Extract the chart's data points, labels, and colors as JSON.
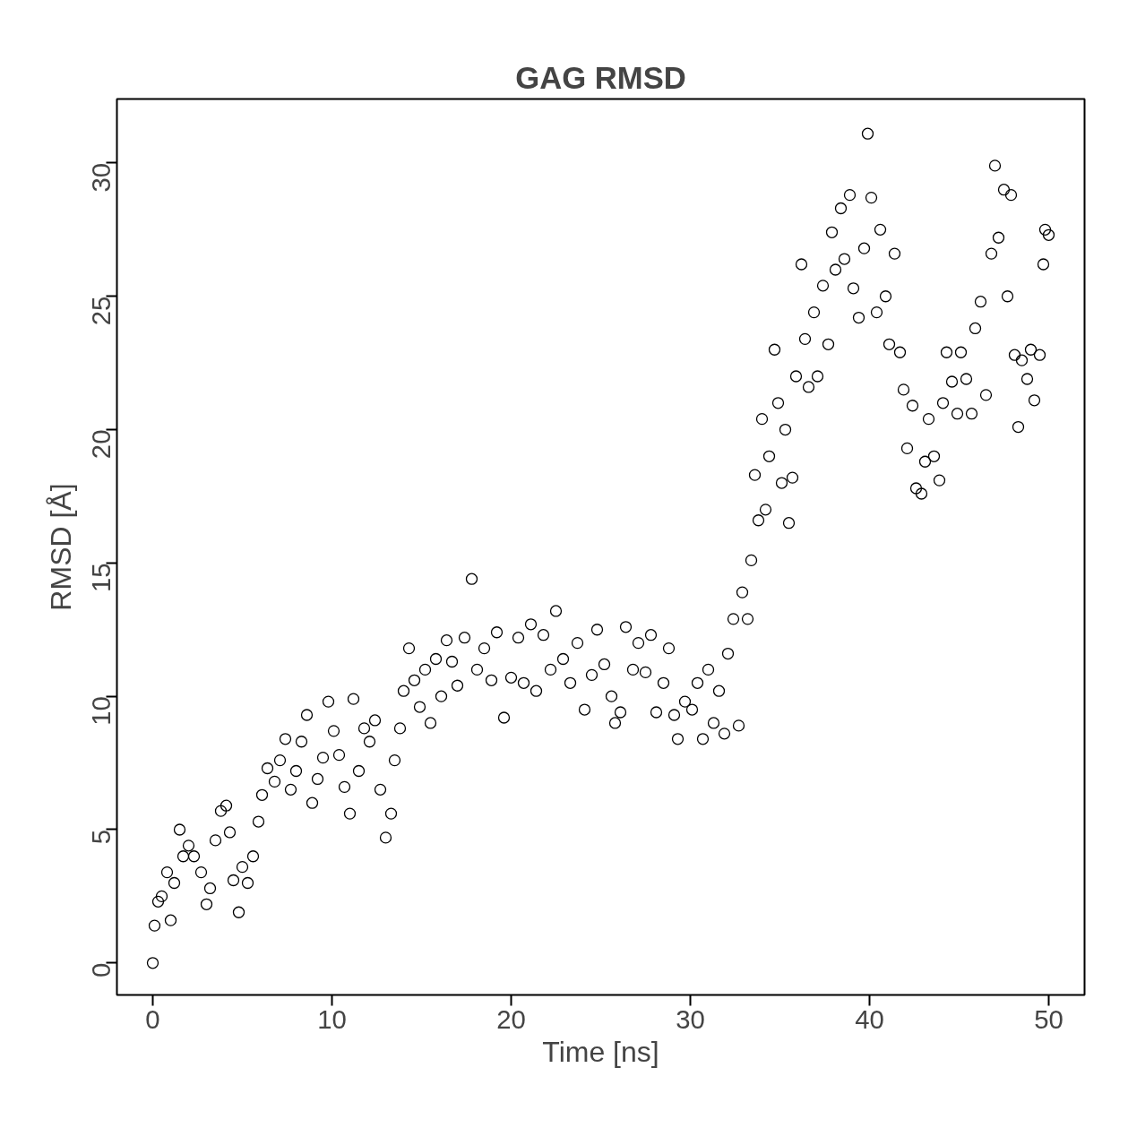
{
  "chart_data": {
    "type": "scatter",
    "title": "GAG RMSD",
    "xlabel": "Time [ns]",
    "ylabel": "RMSD [Å]",
    "xlim": [
      -2,
      52
    ],
    "ylim": [
      -1.2,
      32.4
    ],
    "xticks": [
      0,
      10,
      20,
      30,
      40,
      50
    ],
    "yticks": [
      0,
      5,
      10,
      15,
      20,
      25,
      30
    ],
    "grid": false,
    "marker": "circle",
    "series": [
      {
        "color": "#000000",
        "x": [
          0,
          0.1,
          0.3,
          0.5,
          0.8,
          1.0,
          1.2,
          1.5,
          1.7,
          2.0,
          2.3,
          2.7,
          3.0,
          3.2,
          3.5,
          3.8,
          4.1,
          4.3,
          4.5,
          4.8,
          5.0,
          5.3,
          5.6,
          5.9,
          6.1,
          6.4,
          6.8,
          7.1,
          7.4,
          7.7,
          8.0,
          8.3,
          8.6,
          8.9,
          9.2,
          9.5,
          9.8,
          10.1,
          10.4,
          10.7,
          11.0,
          11.2,
          11.5,
          11.8,
          12.1,
          12.4,
          12.7,
          13.0,
          13.3,
          13.5,
          13.8,
          14.0,
          14.3,
          14.6,
          14.9,
          15.2,
          15.5,
          15.8,
          16.1,
          16.4,
          16.7,
          17.0,
          17.4,
          17.8,
          18.1,
          18.5,
          18.9,
          19.2,
          19.6,
          20.0,
          20.4,
          20.7,
          21.1,
          21.4,
          21.8,
          22.2,
          22.5,
          22.9,
          23.3,
          23.7,
          24.1,
          24.5,
          24.8,
          25.2,
          25.6,
          25.8,
          26.1,
          26.4,
          26.8,
          27.1,
          27.5,
          27.8,
          28.1,
          28.5,
          28.8,
          29.1,
          29.3,
          29.7,
          30.1,
          30.4,
          30.7,
          31.0,
          31.3,
          31.6,
          31.9,
          32.1,
          32.4,
          32.7,
          32.9,
          33.2,
          33.4,
          33.6,
          33.8,
          34.0,
          34.2,
          34.4,
          34.7,
          34.9,
          35.1,
          35.3,
          35.5,
          35.7,
          35.9,
          36.2,
          36.4,
          36.6,
          36.9,
          37.1,
          37.4,
          37.7,
          37.9,
          38.1,
          38.4,
          38.6,
          38.9,
          39.1,
          39.4,
          39.7,
          39.9,
          40.1,
          40.4,
          40.6,
          40.9,
          41.1,
          41.4,
          41.7,
          41.9,
          42.1,
          42.4,
          42.6,
          42.9,
          43.1,
          43.3,
          43.6,
          43.9,
          44.1,
          44.3,
          44.6,
          44.9,
          45.1,
          45.4,
          45.7,
          45.9,
          46.2,
          46.5,
          46.8,
          47.0,
          47.2,
          47.5,
          47.7,
          47.9,
          48.1,
          48.3,
          48.5,
          48.8,
          49.0,
          49.2,
          49.5,
          49.7,
          49.8,
          50.0
        ],
        "values": [
          0,
          1.4,
          2.3,
          2.5,
          3.4,
          1.6,
          3.0,
          5.0,
          4.0,
          4.4,
          4.0,
          3.4,
          2.2,
          2.8,
          4.6,
          5.7,
          5.9,
          4.9,
          3.1,
          1.9,
          3.6,
          3.0,
          4.0,
          5.3,
          6.3,
          7.3,
          6.8,
          7.6,
          8.4,
          6.5,
          7.2,
          8.3,
          9.3,
          6.0,
          6.9,
          7.7,
          9.8,
          8.7,
          7.8,
          6.6,
          5.6,
          9.9,
          7.2,
          8.8,
          8.3,
          9.1,
          6.5,
          4.7,
          5.6,
          7.6,
          8.8,
          10.2,
          11.8,
          10.6,
          9.6,
          11.0,
          9.0,
          11.4,
          10.0,
          12.1,
          11.3,
          10.4,
          12.2,
          14.4,
          11.0,
          11.8,
          10.6,
          12.4,
          9.2,
          10.7,
          12.2,
          10.5,
          12.7,
          10.2,
          12.3,
          11.0,
          13.2,
          11.4,
          10.5,
          12.0,
          9.5,
          10.8,
          12.5,
          11.2,
          10.0,
          9.0,
          9.4,
          12.6,
          11.0,
          12.0,
          10.9,
          12.3,
          9.4,
          10.5,
          11.8,
          9.3,
          8.4,
          9.8,
          9.5,
          10.5,
          8.4,
          11.0,
          9.0,
          10.2,
          8.6,
          11.6,
          12.9,
          8.9,
          13.9,
          12.9,
          15.1,
          18.3,
          16.6,
          20.4,
          17.0,
          19.0,
          23.0,
          21.0,
          18.0,
          20.0,
          16.5,
          18.2,
          22.0,
          26.2,
          23.4,
          21.6,
          24.4,
          22.0,
          25.4,
          23.2,
          27.4,
          26.0,
          28.3,
          26.4,
          28.8,
          25.3,
          24.2,
          26.8,
          31.1,
          28.7,
          24.4,
          27.5,
          25.0,
          23.2,
          26.6,
          22.9,
          21.5,
          19.3,
          20.9,
          17.8,
          17.6,
          18.8,
          20.4,
          19.0,
          18.1,
          21.0,
          22.9,
          21.8,
          20.6,
          22.9,
          21.9,
          20.6,
          23.8,
          24.8,
          21.3,
          26.6,
          29.9,
          27.2,
          29.0,
          25.0,
          28.8,
          22.8,
          20.1,
          22.6,
          21.9,
          23.0,
          21.1,
          22.8,
          26.2,
          27.5,
          27.3
        ]
      }
    ]
  }
}
